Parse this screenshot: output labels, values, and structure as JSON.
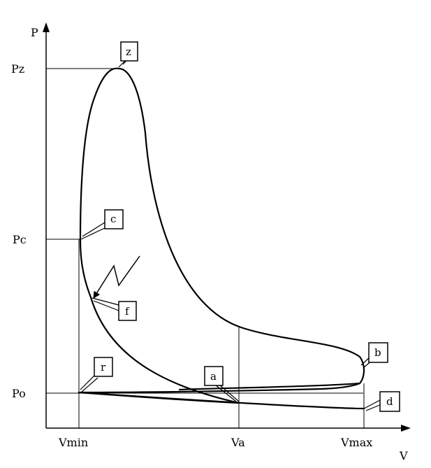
{
  "axes": {
    "y_label": "P",
    "x_label": "V"
  },
  "ticks": {
    "y": [
      "Pz",
      "Pc",
      "Po"
    ],
    "x": [
      "Vmin",
      "Va",
      "Vmax"
    ]
  },
  "points": {
    "z": "z",
    "c": "c",
    "f": "f",
    "r": "r",
    "a": "a",
    "b": "b",
    "d": "d"
  }
}
